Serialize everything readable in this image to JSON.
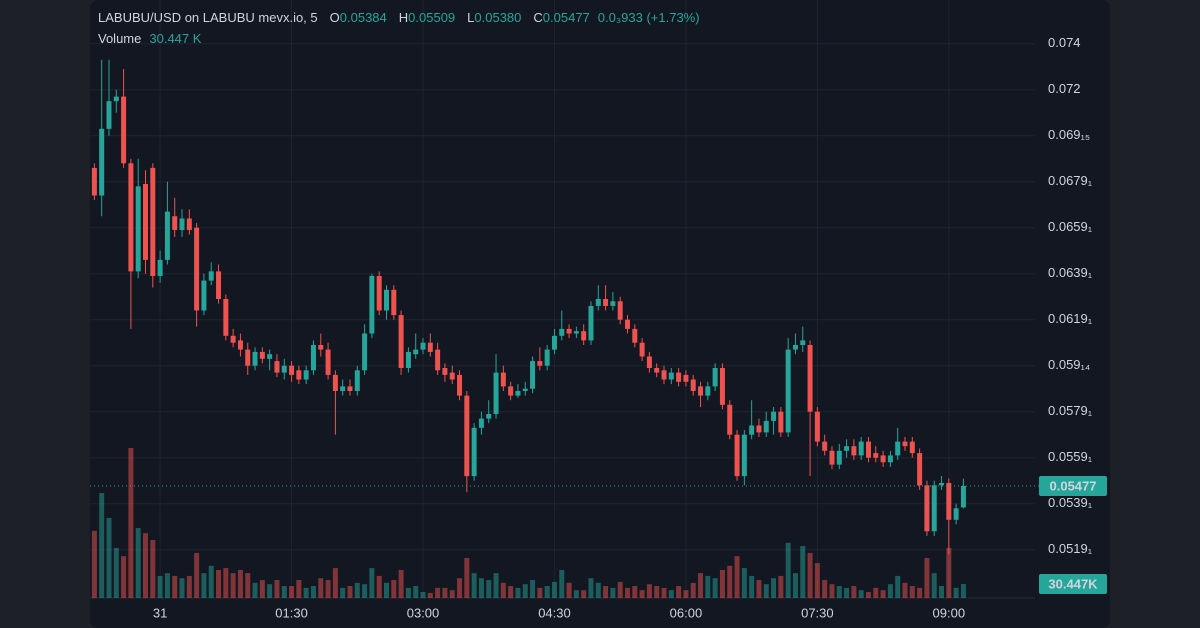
{
  "chart_data": {
    "type": "candlestick",
    "title": "LABUBU/USD on LABUBU mevx.io, 5",
    "ohlc_legend": [
      {
        "key": "O",
        "value": "0.05384"
      },
      {
        "key": "H",
        "value": "0.05509"
      },
      {
        "key": "L",
        "value": "0.05380"
      },
      {
        "key": "C",
        "value": "0.05477"
      }
    ],
    "change": "0.0₃933 (+1.73%)",
    "volume_legend": {
      "name": "Volume",
      "value": "30.447 K"
    },
    "x": [
      -45,
      -40,
      -35,
      -30,
      -25,
      -20,
      -15,
      -10,
      -5,
      0,
      5,
      10,
      15,
      20,
      25,
      30,
      35,
      40,
      45,
      50,
      55,
      60,
      65,
      70,
      75,
      80,
      85,
      90,
      95,
      100,
      105,
      110,
      115,
      120,
      125,
      130,
      135,
      140,
      145,
      150,
      155,
      160,
      165,
      170,
      175,
      180,
      185,
      190,
      195,
      200,
      205,
      210,
      215,
      220,
      225,
      230,
      235,
      240,
      245,
      250,
      255,
      260,
      265,
      270,
      275,
      280,
      285,
      290,
      295,
      300,
      305,
      310,
      315,
      320,
      325,
      330,
      335,
      340,
      345,
      350,
      355,
      360,
      365,
      370,
      375,
      380,
      385,
      390,
      395,
      400,
      405,
      410,
      415,
      420,
      425,
      430,
      435,
      440,
      445,
      450,
      455,
      460,
      465,
      470,
      475,
      480,
      485,
      490,
      495,
      500,
      505,
      510,
      515,
      520,
      525,
      530,
      535,
      540,
      545,
      550
    ],
    "xlim": [
      -48,
      599
    ],
    "xticks": [
      {
        "value": 0,
        "label": "31"
      },
      {
        "value": 90,
        "label": "01:30"
      },
      {
        "value": 180,
        "label": "03:00"
      },
      {
        "value": 270,
        "label": "04:30"
      },
      {
        "value": 360,
        "label": "06:00"
      },
      {
        "value": 450,
        "label": "07:30"
      },
      {
        "value": 540,
        "label": "09:00"
      }
    ],
    "open": [
      0.0686,
      0.0674,
      0.0703,
      0.0715,
      0.0717,
      0.0688,
      0.0641,
      0.0679,
      0.0686,
      0.0639,
      0.0646,
      0.0665,
      0.0659,
      0.0664,
      0.066,
      0.0624,
      0.0637,
      0.0641,
      0.0629,
      0.0613,
      0.0611,
      0.0607,
      0.06,
      0.0606,
      0.0603,
      0.0602,
      0.0597,
      0.06,
      0.0598,
      0.0594,
      0.0598,
      0.0609,
      0.0607,
      0.0596,
      0.0589,
      0.0591,
      0.0589,
      0.0598,
      0.0614,
      0.0639,
      0.0624,
      0.0633,
      0.0622,
      0.0599,
      0.0605,
      0.0607,
      0.061,
      0.0607,
      0.0599,
      0.0597,
      0.0596,
      0.0587,
      0.0552,
      0.0573,
      0.0577,
      0.0579,
      0.0597,
      0.0591,
      0.0587,
      0.0589,
      0.059,
      0.0602,
      0.06,
      0.0607,
      0.0613,
      0.0616,
      0.0614,
      0.0615,
      0.0611,
      0.0626,
      0.0629,
      0.0626,
      0.0628,
      0.062,
      0.0616,
      0.061,
      0.0604,
      0.0599,
      0.0598,
      0.0594,
      0.0597,
      0.0596,
      0.0594,
      0.0591,
      0.0587,
      0.0591,
      0.0599,
      0.0583,
      0.057,
      0.0552,
      0.057,
      0.0574,
      0.0571,
      0.0576,
      0.058,
      0.0571,
      0.0607,
      0.0609,
      0.0609,
      0.058,
      0.0567,
      0.0563,
      0.0557,
      0.0563,
      0.0565,
      0.0561,
      0.0567,
      0.0562,
      0.0561,
      0.0558,
      0.0561,
      0.0567,
      0.0567,
      0.0562,
      0.0548,
      0.0528,
      0.0548,
      0.0549,
      0.0533,
      0.05384
    ],
    "high": [
      0.0688,
      0.0733,
      0.0733,
      0.072,
      0.0729,
      0.069,
      0.069,
      0.0685,
      0.0688,
      0.065,
      0.068,
      0.0673,
      0.0668,
      0.0668,
      0.0662,
      0.064,
      0.0645,
      0.0644,
      0.0631,
      0.0616,
      0.0614,
      0.061,
      0.0608,
      0.0608,
      0.0607,
      0.0605,
      0.0603,
      0.0602,
      0.06,
      0.06,
      0.0611,
      0.0614,
      0.061,
      0.0598,
      0.0594,
      0.0594,
      0.06,
      0.0618,
      0.064,
      0.0641,
      0.0635,
      0.0635,
      0.0624,
      0.0608,
      0.0614,
      0.0612,
      0.0614,
      0.061,
      0.0601,
      0.06,
      0.0598,
      0.0589,
      0.0575,
      0.058,
      0.0585,
      0.0605,
      0.06,
      0.0593,
      0.0592,
      0.0593,
      0.0604,
      0.0608,
      0.0609,
      0.0616,
      0.0624,
      0.0618,
      0.0617,
      0.0618,
      0.0628,
      0.0635,
      0.0635,
      0.0632,
      0.063,
      0.0622,
      0.0618,
      0.0612,
      0.0606,
      0.0601,
      0.06,
      0.0599,
      0.0599,
      0.0598,
      0.0596,
      0.0593,
      0.0593,
      0.0601,
      0.0601,
      0.0585,
      0.0572,
      0.0572,
      0.0585,
      0.0577,
      0.058,
      0.0582,
      0.0582,
      0.0612,
      0.0614,
      0.0617,
      0.0611,
      0.0582,
      0.057,
      0.0565,
      0.0566,
      0.0568,
      0.0568,
      0.0569,
      0.0569,
      0.0565,
      0.0563,
      0.0563,
      0.0573,
      0.0569,
      0.0569,
      0.0564,
      0.055,
      0.055,
      0.0552,
      0.0551,
      0.054,
      0.05509
    ],
    "low": [
      0.0672,
      0.0665,
      0.07,
      0.071,
      0.0686,
      0.0616,
      0.0638,
      0.064,
      0.0634,
      0.0636,
      0.0644,
      0.0656,
      0.0656,
      0.0657,
      0.0617,
      0.0622,
      0.0635,
      0.0627,
      0.0611,
      0.0608,
      0.0604,
      0.0596,
      0.0598,
      0.0601,
      0.0598,
      0.0595,
      0.0594,
      0.0593,
      0.0592,
      0.0592,
      0.0596,
      0.0604,
      0.0594,
      0.057,
      0.0587,
      0.0587,
      0.0587,
      0.0596,
      0.0612,
      0.0622,
      0.062,
      0.062,
      0.0596,
      0.0597,
      0.0603,
      0.0605,
      0.0604,
      0.0596,
      0.0593,
      0.0592,
      0.0585,
      0.0545,
      0.055,
      0.057,
      0.0575,
      0.0577,
      0.0589,
      0.0585,
      0.0586,
      0.0587,
      0.0588,
      0.0598,
      0.0598,
      0.0605,
      0.0611,
      0.0612,
      0.0612,
      0.0609,
      0.0609,
      0.0624,
      0.0624,
      0.0624,
      0.0618,
      0.0614,
      0.0608,
      0.0602,
      0.0597,
      0.0595,
      0.0592,
      0.0592,
      0.0591,
      0.0591,
      0.0587,
      0.0582,
      0.0585,
      0.0589,
      0.0581,
      0.0568,
      0.055,
      0.0548,
      0.0568,
      0.0569,
      0.0569,
      0.057,
      0.0569,
      0.0569,
      0.0605,
      0.0606,
      0.0552,
      0.0565,
      0.0561,
      0.0555,
      0.0555,
      0.056,
      0.0559,
      0.0559,
      0.0558,
      0.0558,
      0.0556,
      0.0556,
      0.0559,
      0.0563,
      0.056,
      0.0546,
      0.0526,
      0.0526,
      0.0546,
      0.0518,
      0.0531,
      0.0538
    ],
    "close": [
      0.0674,
      0.0703,
      0.0715,
      0.0717,
      0.0688,
      0.0641,
      0.0678,
      0.0646,
      0.0639,
      0.0646,
      0.0667,
      0.0659,
      0.0664,
      0.0659,
      0.0624,
      0.0637,
      0.0641,
      0.0629,
      0.0613,
      0.061,
      0.0607,
      0.06,
      0.0606,
      0.0603,
      0.0605,
      0.0597,
      0.06,
      0.0596,
      0.0594,
      0.0598,
      0.0609,
      0.0607,
      0.0596,
      0.0589,
      0.0591,
      0.0589,
      0.0598,
      0.0614,
      0.0639,
      0.0624,
      0.0633,
      0.0622,
      0.0599,
      0.0606,
      0.0607,
      0.061,
      0.0606,
      0.0598,
      0.0596,
      0.0594,
      0.0587,
      0.0552,
      0.0573,
      0.0577,
      0.0579,
      0.0597,
      0.0591,
      0.0587,
      0.0589,
      0.059,
      0.0602,
      0.06,
      0.0607,
      0.0613,
      0.0616,
      0.0614,
      0.0615,
      0.0611,
      0.0626,
      0.0629,
      0.0626,
      0.0628,
      0.062,
      0.0616,
      0.061,
      0.0604,
      0.0599,
      0.0597,
      0.0594,
      0.0597,
      0.0593,
      0.0593,
      0.0589,
      0.0587,
      0.0591,
      0.0599,
      0.0583,
      0.057,
      0.0552,
      0.057,
      0.0574,
      0.0571,
      0.0576,
      0.058,
      0.0571,
      0.0607,
      0.0609,
      0.0611,
      0.058,
      0.0567,
      0.0563,
      0.0557,
      0.0563,
      0.0565,
      0.0561,
      0.0567,
      0.056,
      0.056,
      0.0558,
      0.0561,
      0.0567,
      0.0565,
      0.0562,
      0.0548,
      0.0528,
      0.0548,
      0.0549,
      0.0533,
      0.0538,
      0.05477
    ],
    "volume": [
      146000,
      228000,
      174000,
      109000,
      91000,
      326000,
      152000,
      141000,
      126000,
      48000,
      54000,
      48000,
      43000,
      48000,
      98000,
      54000,
      70000,
      61000,
      65000,
      54000,
      61000,
      54000,
      33000,
      39000,
      30000,
      39000,
      26000,
      26000,
      39000,
      22000,
      26000,
      43000,
      39000,
      65000,
      22000,
      26000,
      33000,
      30000,
      65000,
      48000,
      33000,
      39000,
      61000,
      22000,
      26000,
      13000,
      11000,
      22000,
      22000,
      17000,
      43000,
      87000,
      54000,
      43000,
      39000,
      54000,
      33000,
      26000,
      22000,
      30000,
      39000,
      22000,
      26000,
      35000,
      61000,
      33000,
      17000,
      17000,
      43000,
      33000,
      26000,
      22000,
      35000,
      22000,
      26000,
      17000,
      30000,
      26000,
      22000,
      17000,
      26000,
      17000,
      33000,
      54000,
      48000,
      43000,
      61000,
      70000,
      91000,
      65000,
      48000,
      39000,
      30000,
      43000,
      48000,
      120000,
      54000,
      113000,
      98000,
      76000,
      39000,
      30000,
      26000,
      22000,
      26000,
      17000,
      13000,
      22000,
      17000,
      30000,
      48000,
      33000,
      26000,
      22000,
      87000,
      54000,
      26000,
      109000,
      22000,
      30447
    ],
    "volume_ylim": [
      0,
      400000
    ],
    "ylim": [
      0.0499,
      0.0759
    ],
    "yticks": [
      0.074,
      0.072,
      {
        "value": 0.07,
        "label": "0.069₁₅"
      },
      {
        "value": 0.068,
        "label": "0.0679₁"
      },
      {
        "value": 0.066,
        "label": "0.0659₁"
      },
      {
        "value": 0.064,
        "label": "0.0639₁"
      },
      {
        "value": 0.062,
        "label": "0.0619₁"
      },
      {
        "value": 0.06,
        "label": "0.059₁₄"
      },
      {
        "value": 0.058,
        "label": "0.0579₁"
      },
      {
        "value": 0.056,
        "label": "0.0559₁"
      },
      {
        "value": 0.054,
        "label": "0.0539₁"
      },
      {
        "value": 0.052,
        "label": "0.0519₁"
      }
    ],
    "last_price": {
      "value": 0.05477,
      "label": "0.05477"
    },
    "last_volume_label": "30.447K",
    "up_color": "#26a69a",
    "down_color": "#ef5350",
    "grid": true
  }
}
